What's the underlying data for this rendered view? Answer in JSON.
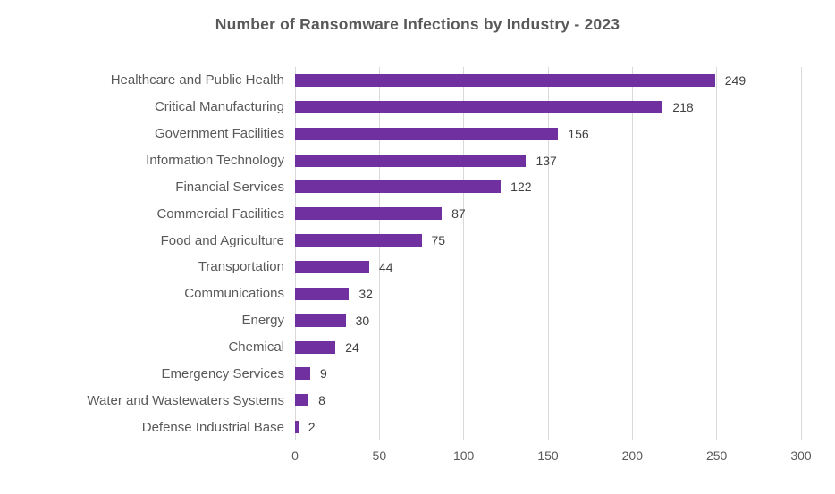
{
  "title": "Number of Ransomware Infections by Industry - 2023",
  "colors": {
    "bar": "#7030A0",
    "gridline": "#D9D9D9",
    "title_text": "#595959",
    "category_text": "#595959",
    "value_text": "#404040",
    "tick_text": "#595959",
    "background": "#FFFFFF"
  },
  "chart_data": {
    "type": "bar",
    "orientation": "horizontal",
    "title": "Number of Ransomware Infections by Industry - 2023",
    "categories": [
      "Healthcare and Public Health",
      "Critical Manufacturing",
      "Government Facilities",
      "Information Technology",
      "Financial Services",
      "Commercial Facilities",
      "Food and Agriculture",
      "Transportation",
      "Communications",
      "Energy",
      "Chemical",
      "Emergency Services",
      "Water and Wastewaters Systems",
      "Defense Industrial Base"
    ],
    "values": [
      249,
      218,
      156,
      137,
      122,
      87,
      75,
      44,
      32,
      30,
      24,
      9,
      8,
      2
    ],
    "value_labels_shown": true,
    "xlabel": "",
    "ylabel": "",
    "xlim": [
      0,
      300
    ],
    "xticks": [
      0,
      50,
      100,
      150,
      200,
      250,
      300
    ],
    "grid": "vertical-only",
    "legend": "none"
  }
}
